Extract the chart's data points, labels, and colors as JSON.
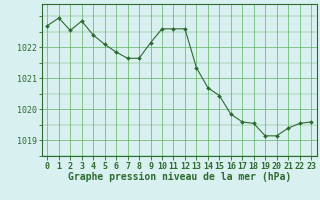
{
  "x": [
    0,
    1,
    2,
    3,
    4,
    5,
    6,
    7,
    8,
    9,
    10,
    11,
    12,
    13,
    14,
    15,
    16,
    17,
    18,
    19,
    20,
    21,
    22,
    23
  ],
  "y": [
    1022.7,
    1022.95,
    1022.55,
    1022.85,
    1022.4,
    1022.1,
    1021.85,
    1021.65,
    1021.65,
    1022.15,
    1022.6,
    1022.6,
    1022.6,
    1021.35,
    1020.7,
    1020.45,
    1019.85,
    1019.6,
    1019.55,
    1019.15,
    1019.15,
    1019.4,
    1019.55,
    1019.6
  ],
  "line_color": "#2d6a2d",
  "marker": "D",
  "marker_size": 2.0,
  "background_color": "#d8f0f0",
  "grid_color": "#60b060",
  "axis_color": "#2d6a2d",
  "xlabel": "Graphe pression niveau de la mer (hPa)",
  "xlabel_fontsize": 7,
  "ylabel_ticks": [
    1019,
    1020,
    1021,
    1022
  ],
  "ylim": [
    1018.5,
    1023.4
  ],
  "xlim": [
    -0.5,
    23.5
  ],
  "tick_fontsize": 6,
  "linewidth": 0.8
}
